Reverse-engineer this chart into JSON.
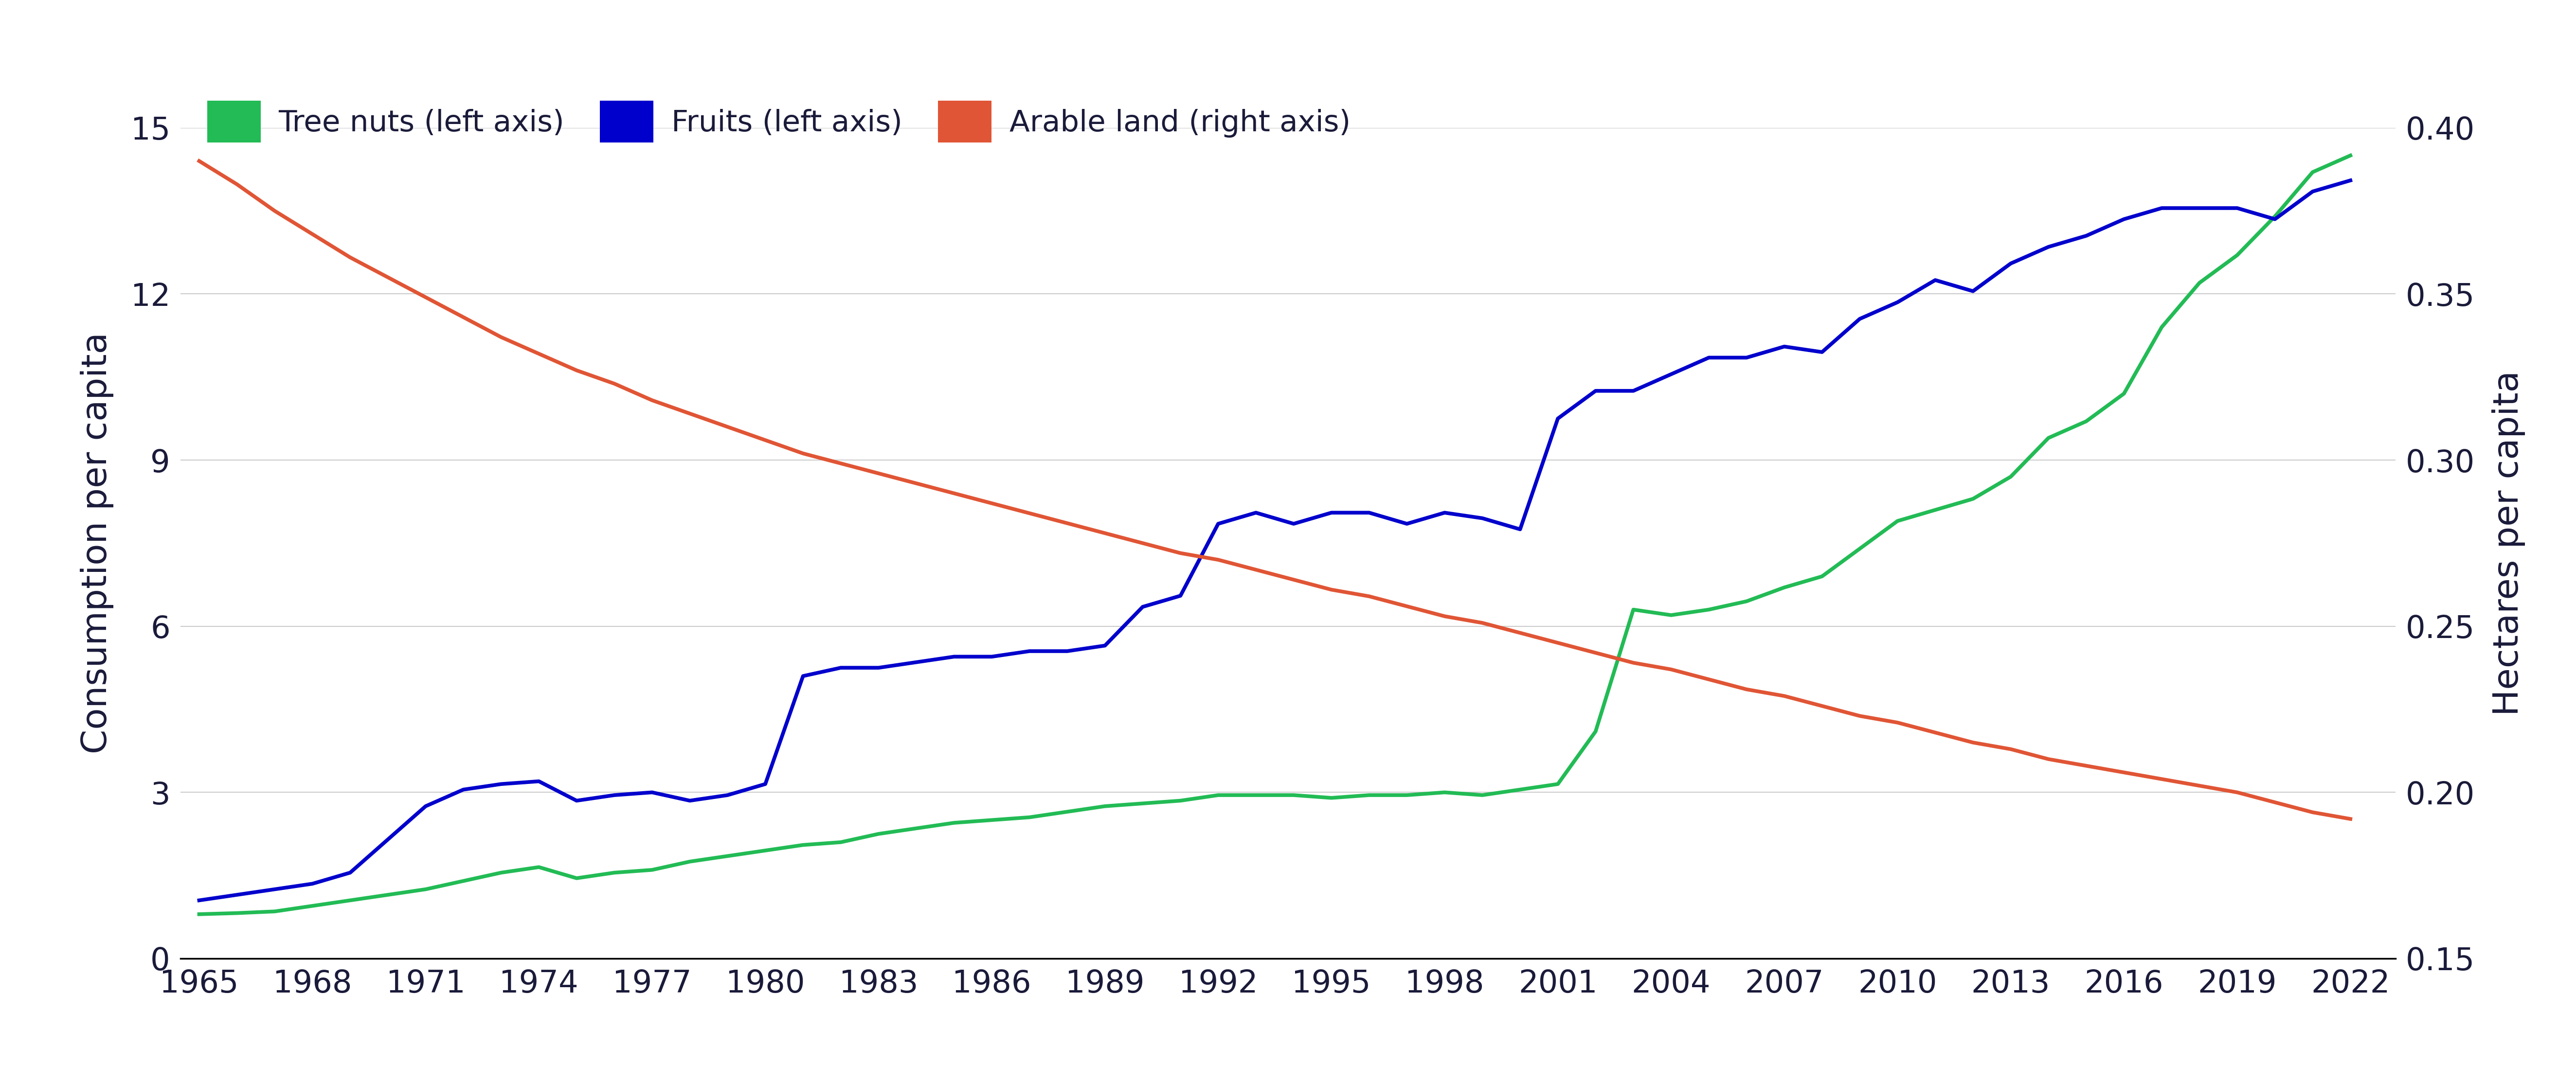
{
  "legend_labels": [
    "Tree nuts (left axis)",
    "Fruits (left axis)",
    "Arable land (right axis)"
  ],
  "legend_colors": [
    "#22bb55",
    "#0000cc",
    "#e05535"
  ],
  "left_ylabel": "Consumption per capita",
  "right_ylabel": "Hectares per capita",
  "left_ylim": [
    0,
    15
  ],
  "right_ylim": [
    0.15,
    0.4
  ],
  "left_yticks": [
    0,
    3,
    6,
    9,
    12,
    15
  ],
  "right_yticks": [
    0.15,
    0.2,
    0.25,
    0.3,
    0.35,
    0.4
  ],
  "xticks": [
    1965,
    1968,
    1971,
    1974,
    1977,
    1980,
    1983,
    1986,
    1989,
    1992,
    1995,
    1998,
    2001,
    2004,
    2007,
    2010,
    2013,
    2016,
    2019,
    2022
  ],
  "xlim": [
    1964.5,
    2023.2
  ],
  "background_color": "#ffffff",
  "text_color": "#1a1a3a",
  "grid_color": "#cccccc",
  "line_width": 5.5,
  "tree_nuts": {
    "years": [
      1965,
      1966,
      1967,
      1968,
      1969,
      1970,
      1971,
      1972,
      1973,
      1974,
      1975,
      1976,
      1977,
      1978,
      1979,
      1980,
      1981,
      1982,
      1983,
      1984,
      1985,
      1986,
      1987,
      1988,
      1989,
      1990,
      1991,
      1992,
      1993,
      1994,
      1995,
      1996,
      1997,
      1998,
      1999,
      2000,
      2001,
      2002,
      2003,
      2004,
      2005,
      2006,
      2007,
      2008,
      2009,
      2010,
      2011,
      2012,
      2013,
      2014,
      2015,
      2016,
      2017,
      2018,
      2019,
      2020,
      2021,
      2022
    ],
    "values": [
      0.8,
      0.82,
      0.85,
      0.95,
      1.05,
      1.15,
      1.25,
      1.4,
      1.55,
      1.65,
      1.45,
      1.55,
      1.6,
      1.75,
      1.85,
      1.95,
      2.05,
      2.1,
      2.25,
      2.35,
      2.45,
      2.5,
      2.55,
      2.65,
      2.75,
      2.8,
      2.85,
      2.95,
      2.95,
      2.95,
      2.9,
      2.95,
      2.95,
      3.0,
      2.95,
      3.05,
      3.15,
      4.1,
      6.3,
      6.2,
      6.3,
      6.45,
      6.7,
      6.9,
      7.4,
      7.9,
      8.1,
      8.3,
      8.7,
      9.4,
      9.7,
      10.2,
      11.4,
      12.2,
      12.7,
      13.4,
      14.2,
      14.5
    ]
  },
  "fruits": {
    "years": [
      1965,
      1966,
      1967,
      1968,
      1969,
      1970,
      1971,
      1972,
      1973,
      1974,
      1975,
      1976,
      1977,
      1978,
      1979,
      1980,
      1981,
      1982,
      1983,
      1984,
      1985,
      1986,
      1987,
      1988,
      1989,
      1990,
      1991,
      1992,
      1993,
      1994,
      1995,
      1996,
      1997,
      1998,
      1999,
      2000,
      2001,
      2002,
      2003,
      2004,
      2005,
      2006,
      2007,
      2008,
      2009,
      2010,
      2011,
      2012,
      2013,
      2014,
      2015,
      2016,
      2017,
      2018,
      2019,
      2020,
      2021,
      2022
    ],
    "values": [
      1.05,
      1.15,
      1.25,
      1.35,
      1.55,
      2.15,
      2.75,
      3.05,
      3.15,
      3.2,
      2.85,
      2.95,
      3.0,
      2.85,
      2.95,
      3.15,
      5.1,
      5.25,
      5.25,
      5.35,
      5.45,
      5.45,
      5.55,
      5.55,
      5.65,
      6.35,
      6.55,
      7.85,
      8.05,
      7.85,
      8.05,
      8.05,
      7.85,
      8.05,
      7.95,
      7.75,
      9.75,
      10.25,
      10.25,
      10.55,
      10.85,
      10.85,
      11.05,
      10.95,
      11.55,
      11.85,
      12.25,
      12.05,
      12.55,
      12.85,
      13.05,
      13.35,
      13.55,
      13.55,
      13.55,
      13.35,
      13.85,
      14.05
    ]
  },
  "arable_land": {
    "years": [
      1965,
      1966,
      1967,
      1968,
      1969,
      1970,
      1971,
      1972,
      1973,
      1974,
      1975,
      1976,
      1977,
      1978,
      1979,
      1980,
      1981,
      1982,
      1983,
      1984,
      1985,
      1986,
      1987,
      1988,
      1989,
      1990,
      1991,
      1992,
      1993,
      1994,
      1995,
      1996,
      1997,
      1998,
      1999,
      2000,
      2001,
      2002,
      2003,
      2004,
      2005,
      2006,
      2007,
      2008,
      2009,
      2010,
      2011,
      2012,
      2013,
      2014,
      2015,
      2016,
      2017,
      2018,
      2019,
      2020,
      2021,
      2022
    ],
    "values": [
      0.39,
      0.383,
      0.375,
      0.368,
      0.361,
      0.355,
      0.349,
      0.343,
      0.337,
      0.332,
      0.327,
      0.323,
      0.318,
      0.314,
      0.31,
      0.306,
      0.302,
      0.299,
      0.296,
      0.293,
      0.29,
      0.287,
      0.284,
      0.281,
      0.278,
      0.275,
      0.272,
      0.27,
      0.267,
      0.264,
      0.261,
      0.259,
      0.256,
      0.253,
      0.251,
      0.248,
      0.245,
      0.242,
      0.239,
      0.237,
      0.234,
      0.231,
      0.229,
      0.226,
      0.223,
      0.221,
      0.218,
      0.215,
      0.213,
      0.21,
      0.208,
      0.206,
      0.204,
      0.202,
      0.2,
      0.197,
      0.194,
      0.192
    ]
  }
}
